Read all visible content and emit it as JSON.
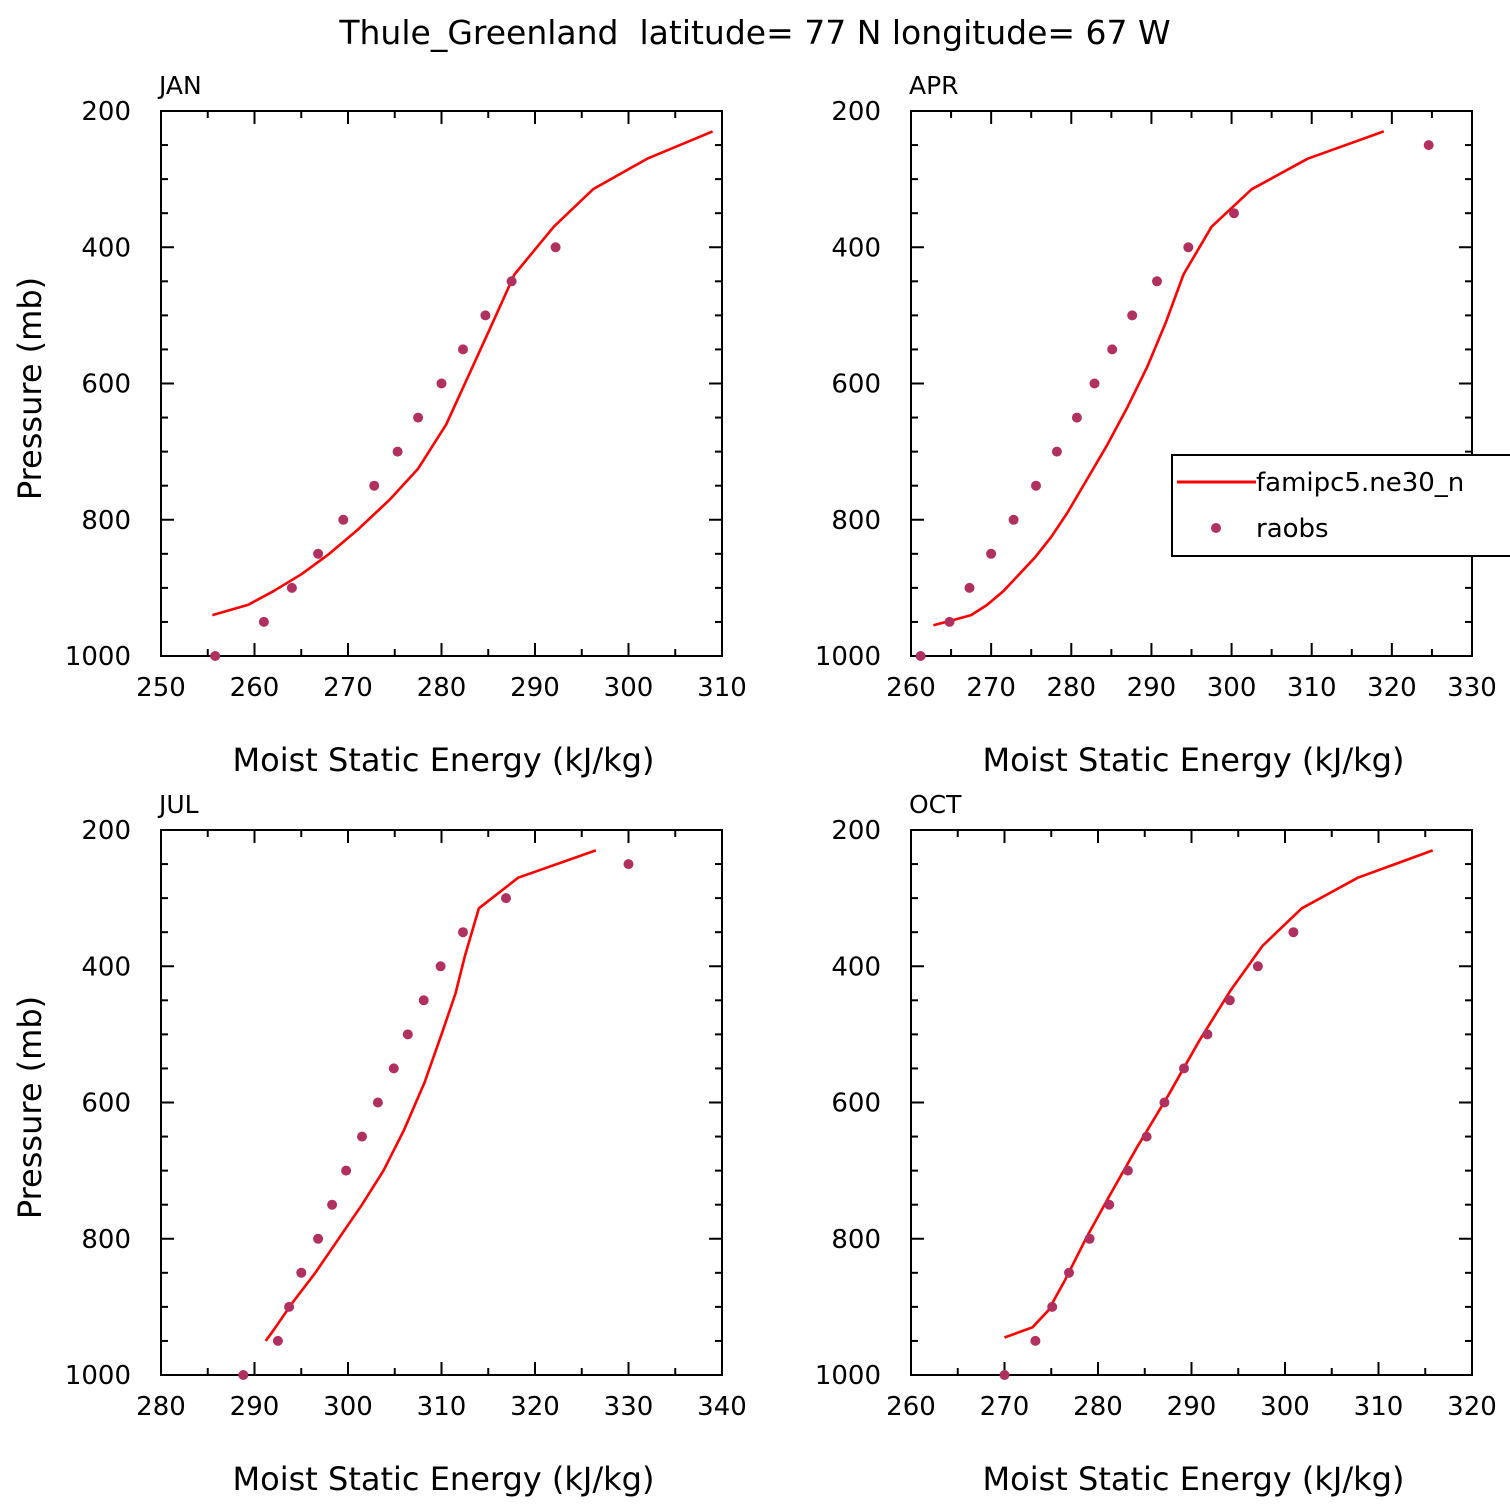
{
  "title": "Thule_Greenland  latitude= 77 N longitude= 67 W",
  "colors": {
    "model": "#ff0000",
    "obs": "#b03060",
    "axes": "#000000"
  },
  "legend": {
    "placement": "right, inside APR panel",
    "model_label": "famipc5.ne30_n",
    "obs_label": "raobs"
  },
  "chart_data": [
    {
      "type": "line",
      "title": "JAN",
      "xlabel": "Moist Static Energy (kJ/kg)",
      "ylabel": "Pressure (mb)",
      "xlim": [
        250,
        310
      ],
      "ylim": [
        200,
        1000
      ],
      "y_inverted": true,
      "xticks": [
        250,
        260,
        270,
        280,
        290,
        300,
        310
      ],
      "yticks": [
        200,
        400,
        600,
        800,
        1000
      ],
      "series": [
        {
          "name": "famipc5.ne30_n",
          "style": "line",
          "x": [
            255.5,
            259.3,
            262.0,
            265.0,
            268.0,
            271.0,
            274.5,
            277.5,
            280.5,
            283.0,
            285.5,
            287.8,
            292.0,
            296.2,
            302.0,
            309.0
          ],
          "y": [
            940,
            925,
            905,
            880,
            850,
            815,
            770,
            725,
            660,
            585,
            510,
            440,
            370,
            315,
            270,
            230
          ]
        },
        {
          "name": "raobs",
          "style": "markers",
          "x": [
            255.8,
            261.0,
            264.0,
            266.8,
            269.5,
            272.8,
            275.3,
            277.5,
            280.0,
            282.3,
            284.7,
            287.5,
            292.2
          ],
          "y": [
            1000,
            950,
            900,
            850,
            800,
            750,
            700,
            650,
            600,
            550,
            500,
            450,
            400
          ]
        }
      ]
    },
    {
      "type": "line",
      "title": "APR",
      "xlabel": "Moist Static Energy (kJ/kg)",
      "ylabel": "",
      "xlim": [
        260,
        330
      ],
      "ylim": [
        200,
        1000
      ],
      "y_inverted": true,
      "xticks": [
        260,
        270,
        280,
        290,
        300,
        310,
        320,
        330
      ],
      "yticks": [
        200,
        400,
        600,
        800,
        1000
      ],
      "series": [
        {
          "name": "famipc5.ne30_n",
          "style": "line",
          "x": [
            262.8,
            265.0,
            267.5,
            269.5,
            271.5,
            273.5,
            275.5,
            277.5,
            279.5,
            282.0,
            284.5,
            287.0,
            289.5,
            291.8,
            294.0,
            297.5,
            302.5,
            309.5,
            319.0
          ],
          "y": [
            955,
            948,
            940,
            925,
            905,
            880,
            855,
            825,
            790,
            740,
            690,
            635,
            575,
            510,
            440,
            370,
            315,
            270,
            230
          ]
        },
        {
          "name": "raobs",
          "style": "markers",
          "x": [
            261.2,
            264.8,
            267.3,
            270.0,
            272.8,
            275.6,
            278.2,
            280.7,
            282.9,
            285.1,
            287.6,
            290.7,
            294.6,
            300.3,
            324.6
          ],
          "y": [
            1000,
            950,
            900,
            850,
            800,
            750,
            700,
            650,
            600,
            550,
            500,
            450,
            400,
            350,
            250
          ]
        }
      ]
    },
    {
      "type": "line",
      "title": "JUL",
      "xlabel": "Moist Static Energy (kJ/kg)",
      "ylabel": "Pressure (mb)",
      "xlim": [
        280,
        340
      ],
      "ylim": [
        200,
        1000
      ],
      "y_inverted": true,
      "xticks": [
        280,
        290,
        300,
        310,
        320,
        330,
        340
      ],
      "yticks": [
        200,
        400,
        600,
        800,
        1000
      ],
      "series": [
        {
          "name": "famipc5.ne30_n",
          "style": "line",
          "x": [
            291.2,
            292.0,
            294.0,
            296.5,
            299.0,
            301.5,
            303.8,
            306.0,
            308.2,
            310.0,
            311.5,
            312.5,
            314.0,
            318.2,
            326.5
          ],
          "y": [
            950,
            935,
            895,
            850,
            800,
            750,
            700,
            640,
            570,
            500,
            440,
            385,
            315,
            270,
            230
          ]
        },
        {
          "name": "raobs",
          "style": "markers",
          "x": [
            288.8,
            292.5,
            293.7,
            295.0,
            296.8,
            298.3,
            299.8,
            301.5,
            303.2,
            304.9,
            306.4,
            308.1,
            309.9,
            312.3,
            316.9,
            330.0
          ],
          "y": [
            1000,
            950,
            900,
            850,
            800,
            750,
            700,
            650,
            600,
            550,
            500,
            450,
            400,
            350,
            300,
            250
          ]
        }
      ]
    },
    {
      "type": "line",
      "title": "OCT",
      "xlabel": "Moist Static Energy (kJ/kg)",
      "ylabel": "",
      "xlim": [
        260,
        320
      ],
      "ylim": [
        200,
        1000
      ],
      "y_inverted": true,
      "xticks": [
        260,
        270,
        280,
        290,
        300,
        310,
        320
      ],
      "yticks": [
        200,
        400,
        600,
        800,
        1000
      ],
      "series": [
        {
          "name": "famipc5.ne30_n",
          "style": "line",
          "x": [
            270.0,
            273.0,
            274.7,
            276.5,
            278.7,
            281.3,
            284.2,
            287.5,
            290.8,
            294.2,
            297.6,
            301.8,
            307.8,
            315.8
          ],
          "y": [
            945,
            930,
            905,
            860,
            800,
            735,
            665,
            590,
            510,
            435,
            370,
            315,
            270,
            230
          ]
        },
        {
          "name": "raobs",
          "style": "markers",
          "x": [
            270.0,
            273.3,
            275.1,
            276.9,
            279.1,
            281.2,
            283.2,
            285.2,
            287.1,
            289.2,
            291.7,
            294.1,
            297.1,
            300.9
          ],
          "y": [
            1000,
            950,
            900,
            850,
            800,
            750,
            700,
            650,
            600,
            550,
            500,
            450,
            400,
            350
          ]
        }
      ]
    }
  ]
}
